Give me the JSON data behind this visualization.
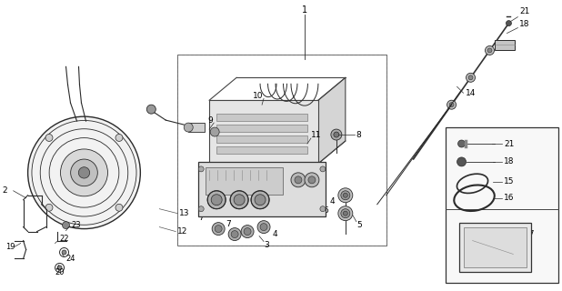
{
  "background_color": "#ffffff",
  "line_color": "#2a2a2a",
  "fig_width": 6.18,
  "fig_height": 3.2,
  "dpi": 100
}
